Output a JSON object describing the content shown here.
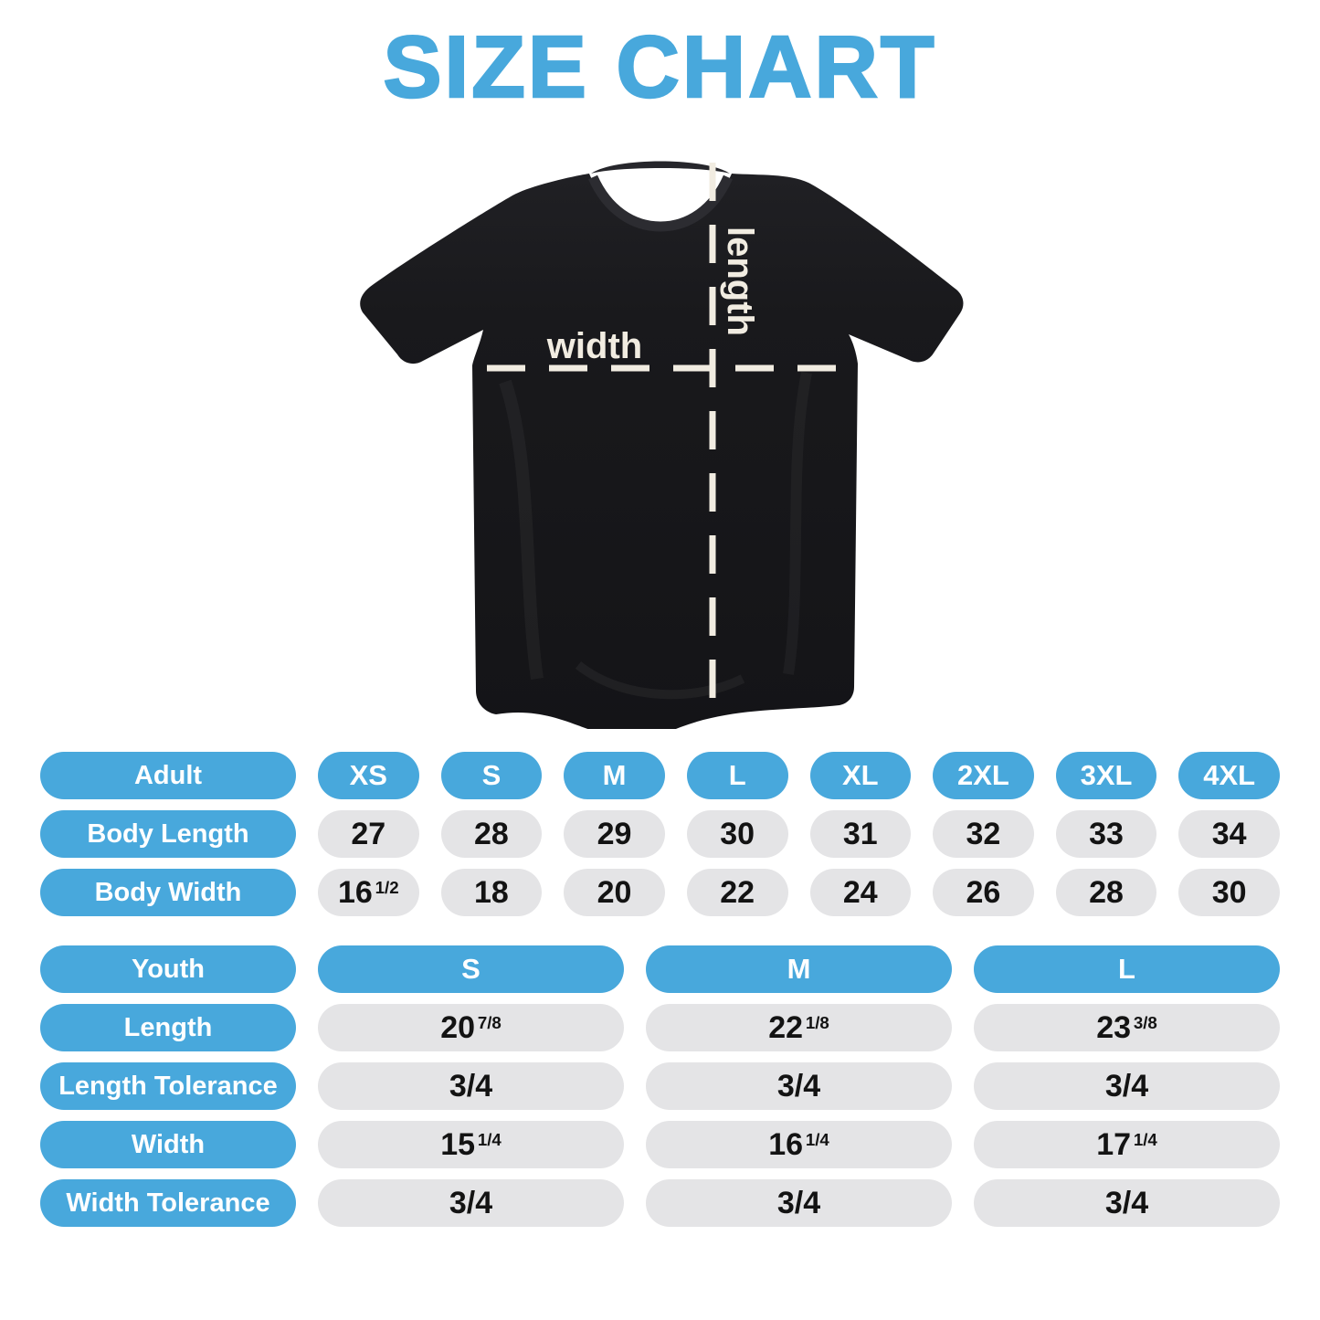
{
  "title": "SIZE CHART",
  "colors": {
    "accent_blue": "#48a8dc",
    "pill_gray": "#e4e4e6",
    "shirt_black": "#1a1a1d",
    "dash_cream": "#f1ece1"
  },
  "diagram": {
    "width_label": "width",
    "length_label": "length"
  },
  "adult_table": {
    "header": {
      "label": "Adult",
      "sizes": [
        "XS",
        "S",
        "M",
        "L",
        "XL",
        "2XL",
        "3XL",
        "4XL"
      ]
    },
    "rows": [
      {
        "label": "Body Length",
        "values": [
          "27",
          "28",
          "29",
          "30",
          "31",
          "32",
          "33",
          "34"
        ]
      },
      {
        "label": "Body Width",
        "values": [
          "16 1/2",
          "18",
          "20",
          "22",
          "24",
          "26",
          "28",
          "30"
        ]
      }
    ]
  },
  "youth_table": {
    "header": {
      "label": "Youth",
      "sizes": [
        "S",
        "M",
        "L"
      ]
    },
    "rows": [
      {
        "label": "Length",
        "values": [
          "20 7/8",
          "22 1/8",
          "23 3/8"
        ]
      },
      {
        "label": "Length Tolerance",
        "values": [
          "3/4",
          "3/4",
          "3/4"
        ]
      },
      {
        "label": "Width",
        "values": [
          "15 1/4",
          "16 1/4",
          "17 1/4"
        ]
      },
      {
        "label": "Width Tolerance",
        "values": [
          "3/4",
          "3/4",
          "3/4"
        ]
      }
    ]
  },
  "chart_data": [
    {
      "type": "table",
      "title": "Adult sizes (inches)",
      "columns": [
        "Adult",
        "XS",
        "S",
        "M",
        "L",
        "XL",
        "2XL",
        "3XL",
        "4XL"
      ],
      "rows": [
        [
          "Body Length",
          27,
          28,
          29,
          30,
          31,
          32,
          33,
          34
        ],
        [
          "Body Width",
          16.5,
          18,
          20,
          22,
          24,
          26,
          28,
          30
        ]
      ]
    },
    {
      "type": "table",
      "title": "Youth sizes (inches)",
      "columns": [
        "Youth",
        "S",
        "M",
        "L"
      ],
      "rows": [
        [
          "Length",
          20.875,
          22.125,
          23.375
        ],
        [
          "Length Tolerance",
          0.75,
          0.75,
          0.75
        ],
        [
          "Width",
          15.25,
          16.25,
          17.25
        ],
        [
          "Width Tolerance",
          0.75,
          0.75,
          0.75
        ]
      ]
    }
  ]
}
